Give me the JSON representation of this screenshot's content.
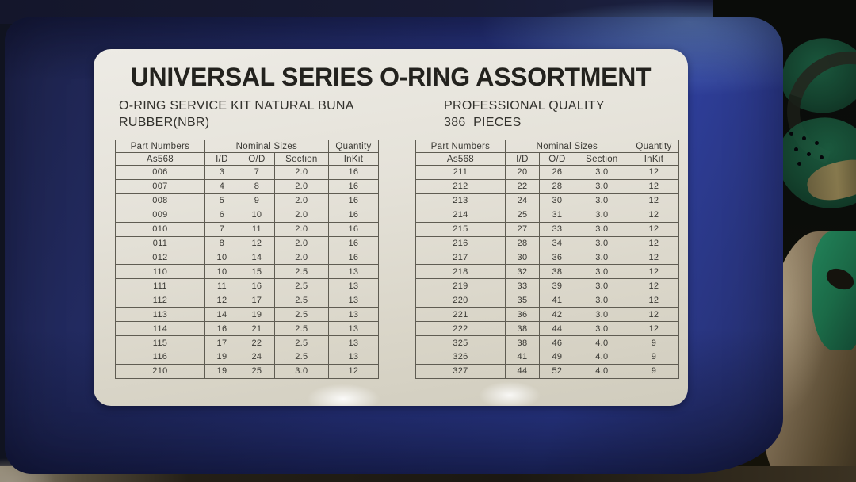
{
  "label": {
    "title": "UNIVERSAL SERIES O-RING ASSORTMENT",
    "subtitle_left": [
      "O-RING SERVICE KIT NATURAL BUNA",
      "RUBBER(NBR)"
    ],
    "subtitle_right": [
      "PROFESSIONAL QUALITY",
      "386  PIECES"
    ]
  },
  "tables": [
    {
      "group_headers": {
        "part_numbers": "Part Numbers",
        "nominal_sizes": "Nominal Sizes",
        "quantity": "Quantity"
      },
      "sub_headers": {
        "part": "As568",
        "id": "I/D",
        "od": "O/D",
        "section": "Section",
        "inkit": "InKit"
      },
      "rows": [
        [
          "006",
          "3",
          "7",
          "2.0",
          "16"
        ],
        [
          "007",
          "4",
          "8",
          "2.0",
          "16"
        ],
        [
          "008",
          "5",
          "9",
          "2.0",
          "16"
        ],
        [
          "009",
          "6",
          "10",
          "2.0",
          "16"
        ],
        [
          "010",
          "7",
          "11",
          "2.0",
          "16"
        ],
        [
          "011",
          "8",
          "12",
          "2.0",
          "16"
        ],
        [
          "012",
          "10",
          "14",
          "2.0",
          "16"
        ],
        [
          "110",
          "10",
          "15",
          "2.5",
          "13"
        ],
        [
          "111",
          "11",
          "16",
          "2.5",
          "13"
        ],
        [
          "112",
          "12",
          "17",
          "2.5",
          "13"
        ],
        [
          "113",
          "14",
          "19",
          "2.5",
          "13"
        ],
        [
          "114",
          "16",
          "21",
          "2.5",
          "13"
        ],
        [
          "115",
          "17",
          "22",
          "2.5",
          "13"
        ],
        [
          "116",
          "19",
          "24",
          "2.5",
          "13"
        ],
        [
          "210",
          "19",
          "25",
          "3.0",
          "12"
        ]
      ]
    },
    {
      "group_headers": {
        "part_numbers": "Part Numbers",
        "nominal_sizes": "Nominal Sizes",
        "quantity": "Quantity"
      },
      "sub_headers": {
        "part": "As568",
        "id": "I/D",
        "od": "O/D",
        "section": "Section",
        "inkit": "InKit"
      },
      "rows": [
        [
          "211",
          "20",
          "26",
          "3.0",
          "12"
        ],
        [
          "212",
          "22",
          "28",
          "3.0",
          "12"
        ],
        [
          "213",
          "24",
          "30",
          "3.0",
          "12"
        ],
        [
          "214",
          "25",
          "31",
          "3.0",
          "12"
        ],
        [
          "215",
          "27",
          "33",
          "3.0",
          "12"
        ],
        [
          "216",
          "28",
          "34",
          "3.0",
          "12"
        ],
        [
          "217",
          "30",
          "36",
          "3.0",
          "12"
        ],
        [
          "218",
          "32",
          "38",
          "3.0",
          "12"
        ],
        [
          "219",
          "33",
          "39",
          "3.0",
          "12"
        ],
        [
          "220",
          "35",
          "41",
          "3.0",
          "12"
        ],
        [
          "221",
          "36",
          "42",
          "3.0",
          "12"
        ],
        [
          "222",
          "38",
          "44",
          "3.0",
          "12"
        ],
        [
          "325",
          "38",
          "46",
          "4.0",
          "9"
        ],
        [
          "326",
          "41",
          "49",
          "4.0",
          "9"
        ],
        [
          "327",
          "44",
          "52",
          "4.0",
          "9"
        ]
      ]
    }
  ],
  "colors": {
    "case_blue": "#2a3788",
    "case_blue_dark": "#1d2248",
    "label_background": "#e0ddd2",
    "table_text": "#3a3934",
    "table_border": "#5f5c52",
    "gasket_green": "#1e7a50",
    "metal_bronze": "#79684f"
  }
}
